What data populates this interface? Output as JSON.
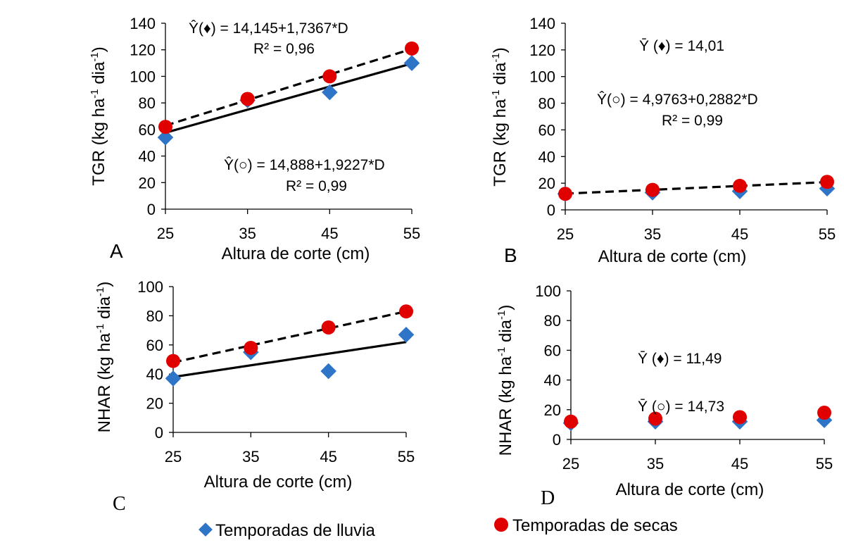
{
  "chart_data": [
    {
      "panel": "A",
      "type": "scatter",
      "xlabel": "Altura de corte (cm)",
      "ylabel": "TGR (kg ha-1 dia-1)",
      "ylabel_parts": {
        "main": "TGR (kg ha",
        "sup1": "-1",
        "mid": " dia",
        "sup2": "-1",
        "end": ")"
      },
      "x_ticks": [
        25,
        35,
        45,
        55
      ],
      "y_ticks": [
        0,
        20,
        40,
        60,
        80,
        100,
        120,
        140
      ],
      "xlim": [
        25,
        55
      ],
      "ylim": [
        0,
        140
      ],
      "series": [
        {
          "name": "Temporadas de lluvia",
          "marker": "diamond",
          "color": "#2E75C8",
          "x": [
            25,
            35,
            45,
            55
          ],
          "y": [
            54,
            82,
            88,
            110
          ],
          "fit": {
            "intercept": 14.145,
            "slope": 1.7367,
            "style": "solid"
          }
        },
        {
          "name": "Temporadas de secas",
          "marker": "circle",
          "color": "#E00000",
          "x": [
            25,
            35,
            45,
            55
          ],
          "y": [
            62,
            83,
            100,
            121
          ],
          "fit": {
            "intercept": 14.888,
            "slope": 1.9227,
            "style": "dashed"
          }
        }
      ],
      "annotations": {
        "eq1": "Ŷ(♦) = 14,145+1,7367*D",
        "r1": "R² = 0,96",
        "eq2": "Ŷ(○) = 14,888+1,9227*D",
        "r2": "R² = 0,99"
      }
    },
    {
      "panel": "B",
      "type": "scatter",
      "xlabel": "Altura de corte (cm)",
      "ylabel": "TGR (kg ha-1 dia-1)",
      "ylabel_parts": {
        "main": "TGR (kg ha",
        "sup1": "-1",
        "mid": " dia",
        "sup2": "-1",
        "end": ")"
      },
      "x_ticks": [
        25,
        35,
        45,
        55
      ],
      "y_ticks": [
        0,
        20,
        40,
        60,
        80,
        100,
        120,
        140
      ],
      "xlim": [
        25,
        55
      ],
      "ylim": [
        0,
        140
      ],
      "series": [
        {
          "name": "Temporadas de lluvia",
          "marker": "diamond",
          "color": "#2E75C8",
          "x": [
            25,
            35,
            45,
            55
          ],
          "y": [
            12,
            13,
            14,
            16
          ]
        },
        {
          "name": "Temporadas de secas",
          "marker": "circle",
          "color": "#E00000",
          "x": [
            25,
            35,
            45,
            55
          ],
          "y": [
            12,
            15,
            18,
            21
          ],
          "fit": {
            "intercept": 4.9763,
            "slope": 0.2882,
            "style": "dashed"
          }
        }
      ],
      "annotations": {
        "eq1": "Ȳ (♦) = 14,01",
        "eq2": "Ŷ(○) = 4,9763+0,2882*D",
        "r2": "R² = 0,99"
      }
    },
    {
      "panel": "C",
      "type": "scatter",
      "xlabel": "Altura de corte (cm)",
      "ylabel": "NHAR (kg ha-1 dia-1)",
      "ylabel_parts": {
        "main": "NHAR (kg ha",
        "sup1": "-1",
        "mid": " dia",
        "sup2": "-1",
        "end": ")"
      },
      "x_ticks": [
        25,
        35,
        45,
        55
      ],
      "y_ticks": [
        0,
        20,
        40,
        60,
        80,
        100
      ],
      "xlim": [
        25,
        55
      ],
      "ylim": [
        0,
        100
      ],
      "series": [
        {
          "name": "Temporadas de lluvia",
          "marker": "diamond",
          "color": "#2E75C8",
          "x": [
            25,
            35,
            45,
            55
          ],
          "y": [
            37,
            55,
            42,
            67
          ],
          "fit": {
            "y0": 38,
            "y1": 62,
            "style": "solid"
          }
        },
        {
          "name": "Temporadas de secas",
          "marker": "circle",
          "color": "#E00000",
          "x": [
            25,
            35,
            45,
            55
          ],
          "y": [
            49,
            58,
            72,
            83
          ],
          "fit": {
            "y0": 48,
            "y1": 83,
            "style": "dashed"
          }
        }
      ],
      "annotations": {}
    },
    {
      "panel": "D",
      "type": "scatter",
      "xlabel": "Altura de corte (cm)",
      "ylabel": "NHAR (kg ha-1 dia-1)",
      "ylabel_parts": {
        "main": "NHAR  (kg ha",
        "sup1": "-1",
        "mid": " dia",
        "sup2": "-1",
        "end": ")"
      },
      "x_ticks": [
        25,
        35,
        45,
        55
      ],
      "y_ticks": [
        0,
        20,
        40,
        60,
        80,
        100
      ],
      "xlim": [
        25,
        55
      ],
      "ylim": [
        0,
        100
      ],
      "series": [
        {
          "name": "Temporadas de lluvia",
          "marker": "diamond",
          "color": "#2E75C8",
          "x": [
            25,
            35,
            45,
            55
          ],
          "y": [
            11,
            12,
            12,
            13
          ]
        },
        {
          "name": "Temporadas de secas",
          "marker": "circle",
          "color": "#E00000",
          "x": [
            25,
            35,
            45,
            55
          ],
          "y": [
            12,
            14,
            15,
            18
          ]
        }
      ],
      "annotations": {
        "eq1": "Ȳ (♦) = 11,49",
        "eq2": "Ȳ (○) = 14,73"
      }
    }
  ],
  "legend": {
    "lluvia": "Temporadas de lluvia",
    "secas": "Temporadas de secas",
    "lluvia_color": "#2E75C8",
    "secas_color": "#E00000"
  }
}
